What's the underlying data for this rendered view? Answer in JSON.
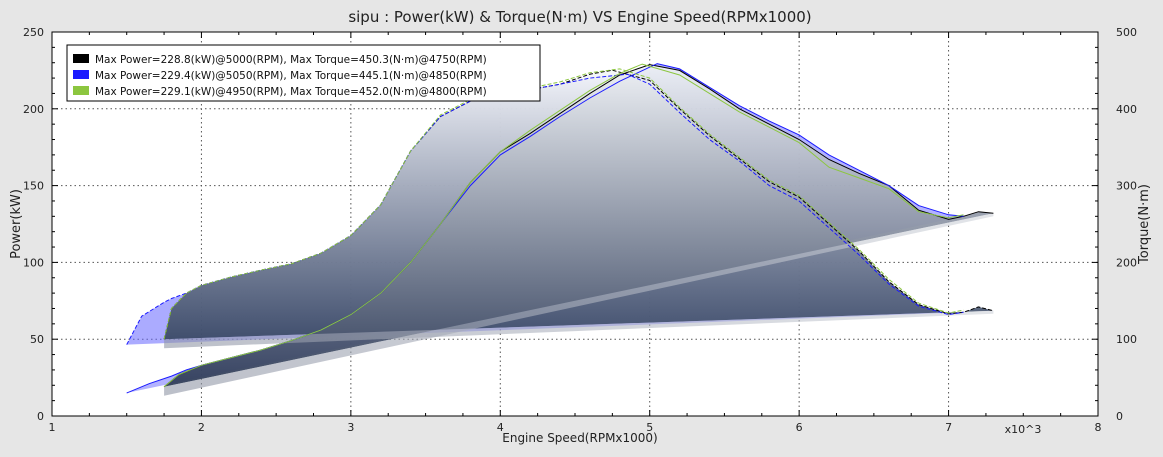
{
  "chart_data": {
    "type": "line",
    "title": "sipu : Power(kW) & Torque(N·m) VS Engine Speed(RPMx1000)",
    "xlabel": "Engine Speed(RPMx1000)",
    "ylabel_left": "Power(kW)",
    "ylabel_right": "Torque(N·m)",
    "x_multiplier_label": "x10^3",
    "xlim": [
      1,
      8
    ],
    "ylim_left": [
      0,
      250
    ],
    "ylim_right": [
      0,
      500
    ],
    "x_ticks": [
      "1",
      "2",
      "3",
      "4",
      "5",
      "6",
      "7",
      "8"
    ],
    "y_left_ticks": [
      "0",
      "50",
      "100",
      "150",
      "200",
      "250"
    ],
    "y_right_ticks": [
      "0",
      "100",
      "200",
      "300",
      "400",
      "500"
    ],
    "grid": true,
    "legend_position": "top-left",
    "legend": [
      "Max Power=228.8(kW)@5000(RPM), Max Torque=450.3(N·m)@4750(RPM)",
      "Max Power=229.4(kW)@5050(RPM), Max Torque=445.1(N·m)@4850(RPM)",
      "Max Power=229.1(kW)@4950(RPM), Max Torque=452.0(N·m)@4800(RPM)"
    ],
    "series": [
      {
        "color": "#000000",
        "power_rpm": [
          1.75,
          1.85,
          2.0,
          2.2,
          2.4,
          2.6,
          2.8,
          3.0,
          3.2,
          3.4,
          3.6,
          3.8,
          4.0,
          4.2,
          4.4,
          4.6,
          4.8,
          5.0,
          5.2,
          5.4,
          5.6,
          5.8,
          6.0,
          6.2,
          6.4,
          6.6,
          6.8,
          7.0,
          7.1,
          7.2,
          7.3
        ],
        "power_kw": [
          19,
          27,
          33,
          38,
          43,
          49,
          56,
          66,
          80,
          100,
          125,
          152,
          172,
          184,
          197,
          210,
          222,
          228.8,
          225,
          213,
          200,
          190,
          180,
          167,
          158,
          150,
          134,
          128,
          130,
          133,
          132
        ],
        "torque_rpm": [
          1.75,
          1.8,
          1.9,
          2.0,
          2.2,
          2.4,
          2.6,
          2.8,
          3.0,
          3.2,
          3.4,
          3.6,
          3.8,
          4.0,
          4.2,
          4.4,
          4.6,
          4.75,
          5.0,
          5.2,
          5.4,
          5.6,
          5.8,
          6.0,
          6.2,
          6.4,
          6.6,
          6.8,
          7.0,
          7.1,
          7.2,
          7.3
        ],
        "torque_nm": [
          100,
          140,
          160,
          170,
          181,
          190,
          198,
          212,
          235,
          275,
          345,
          390,
          410,
          418,
          425,
          432,
          445,
          450.3,
          437,
          400,
          365,
          335,
          305,
          285,
          250,
          215,
          175,
          145,
          133,
          135,
          142,
          137
        ]
      },
      {
        "color": "#1a1aff",
        "power_rpm": [
          1.5,
          1.65,
          1.8,
          1.9,
          2.0,
          2.2,
          2.4,
          2.6,
          2.8,
          3.0,
          3.2,
          3.4,
          3.6,
          3.8,
          4.0,
          4.2,
          4.4,
          4.6,
          4.8,
          5.05,
          5.2,
          5.4,
          5.6,
          5.8,
          6.0,
          6.2,
          6.4,
          6.6,
          6.8,
          7.0,
          7.1
        ],
        "power_kw": [
          15,
          21,
          26,
          30,
          33,
          38,
          43,
          49,
          56,
          66,
          80,
          100,
          125,
          150,
          170,
          182,
          195,
          207,
          218,
          229.4,
          226,
          214,
          202,
          192,
          183,
          170,
          160,
          150,
          137,
          131,
          130
        ],
        "torque_rpm": [
          1.5,
          1.6,
          1.75,
          1.8,
          1.9,
          2.0,
          2.2,
          2.4,
          2.6,
          2.8,
          3.0,
          3.2,
          3.4,
          3.6,
          3.8,
          4.0,
          4.2,
          4.4,
          4.6,
          4.85,
          5.0,
          5.2,
          5.4,
          5.6,
          5.8,
          6.0,
          6.2,
          6.4,
          6.6,
          6.8,
          7.0,
          7.1
        ],
        "torque_nm": [
          93,
          130,
          148,
          153,
          160,
          170,
          181,
          190,
          198,
          212,
          235,
          275,
          345,
          390,
          410,
          418,
          425,
          432,
          440,
          445.1,
          432,
          395,
          360,
          332,
          300,
          280,
          245,
          210,
          172,
          143,
          132,
          135
        ]
      },
      {
        "color": "#8cc63f",
        "power_rpm": [
          1.75,
          1.85,
          2.0,
          2.2,
          2.4,
          2.6,
          2.8,
          3.0,
          3.2,
          3.4,
          3.6,
          3.8,
          4.0,
          4.2,
          4.4,
          4.6,
          4.8,
          4.95,
          5.2,
          5.4,
          5.6,
          5.8,
          6.0,
          6.2,
          6.4,
          6.6,
          6.8,
          7.0,
          7.1
        ],
        "power_kw": [
          19,
          27,
          33,
          38,
          43,
          49,
          56,
          66,
          80,
          100,
          125,
          152,
          172,
          186,
          199,
          212,
          223,
          229.1,
          222,
          210,
          198,
          188,
          178,
          162,
          155,
          148,
          133,
          129,
          131
        ],
        "torque_rpm": [
          1.75,
          1.8,
          1.9,
          2.0,
          2.2,
          2.4,
          2.6,
          2.8,
          3.0,
          3.2,
          3.4,
          3.6,
          3.8,
          4.0,
          4.2,
          4.4,
          4.6,
          4.8,
          5.0,
          5.2,
          5.4,
          5.6,
          5.8,
          6.0,
          6.2,
          6.4,
          6.6,
          6.8,
          7.0,
          7.1
        ],
        "torque_nm": [
          100,
          140,
          160,
          170,
          181,
          190,
          198,
          212,
          235,
          275,
          345,
          392,
          412,
          420,
          427,
          435,
          447,
          452.0,
          440,
          402,
          367,
          337,
          307,
          287,
          252,
          217,
          178,
          147,
          134,
          138
        ]
      }
    ]
  }
}
